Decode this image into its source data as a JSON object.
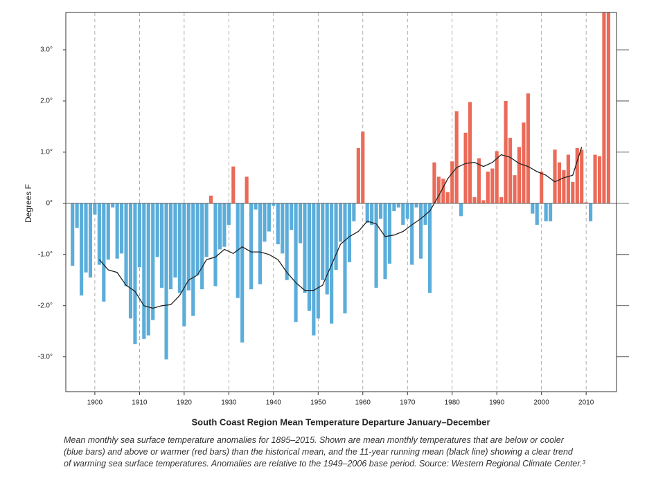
{
  "chart_data": {
    "type": "bar",
    "x_label": "South Coast Region Mean Temperature Departure January–December",
    "y_label": "Degrees F",
    "x": [
      1895,
      1896,
      1897,
      1898,
      1899,
      1900,
      1901,
      1902,
      1903,
      1904,
      1905,
      1906,
      1907,
      1908,
      1909,
      1910,
      1911,
      1912,
      1913,
      1914,
      1915,
      1916,
      1917,
      1918,
      1919,
      1920,
      1921,
      1922,
      1923,
      1924,
      1925,
      1926,
      1927,
      1928,
      1929,
      1930,
      1931,
      1932,
      1933,
      1934,
      1935,
      1936,
      1937,
      1938,
      1939,
      1940,
      1941,
      1942,
      1943,
      1944,
      1945,
      1946,
      1947,
      1948,
      1949,
      1950,
      1951,
      1952,
      1953,
      1954,
      1955,
      1956,
      1957,
      1958,
      1959,
      1960,
      1961,
      1962,
      1963,
      1964,
      1965,
      1966,
      1967,
      1968,
      1969,
      1970,
      1971,
      1972,
      1973,
      1974,
      1975,
      1976,
      1977,
      1978,
      1979,
      1980,
      1981,
      1982,
      1983,
      1984,
      1985,
      1986,
      1987,
      1988,
      1989,
      1990,
      1991,
      1992,
      1993,
      1994,
      1995,
      1996,
      1997,
      1998,
      1999,
      2000,
      2001,
      2002,
      2003,
      2004,
      2005,
      2006,
      2007,
      2008,
      2009,
      2010,
      2011,
      2012,
      2013,
      2014,
      2015
    ],
    "values": [
      -1.22,
      -0.48,
      -1.8,
      -1.35,
      -1.45,
      -0.22,
      -1.2,
      -1.92,
      -1.1,
      -0.08,
      -1.08,
      -0.98,
      -1.62,
      -2.25,
      -2.75,
      -1.25,
      -2.65,
      -2.58,
      -2.28,
      -1.05,
      -1.65,
      -3.05,
      -1.68,
      -1.45,
      -1.75,
      -2.4,
      -1.7,
      -2.2,
      -1.4,
      -1.68,
      -1.05,
      0.15,
      -1.62,
      -0.9,
      -0.85,
      -0.42,
      0.72,
      -1.85,
      -2.72,
      0.52,
      -1.68,
      -0.12,
      -1.58,
      -0.75,
      -0.55,
      -0.05,
      -0.8,
      -0.98,
      -1.5,
      -0.52,
      -2.32,
      -0.78,
      -1.75,
      -2.1,
      -2.58,
      -2.25,
      -1.5,
      -1.78,
      -2.35,
      -1.3,
      -0.75,
      -2.15,
      -1.15,
      -0.35,
      1.08,
      1.4,
      -0.38,
      -0.42,
      -1.65,
      -0.3,
      -1.48,
      -1.18,
      -0.15,
      -0.08,
      -0.42,
      -0.3,
      -1.2,
      -0.08,
      -1.08,
      -0.42,
      -1.75,
      0.8,
      0.52,
      0.48,
      0.22,
      0.82,
      1.8,
      -0.25,
      1.38,
      1.98,
      0.12,
      0.88,
      0.06,
      0.62,
      0.68,
      1.02,
      0.12,
      2.0,
      1.28,
      0.55,
      1.1,
      1.58,
      2.15,
      -0.2,
      -0.42,
      0.62,
      -0.35,
      -0.35,
      1.05,
      0.8,
      0.65,
      0.95,
      0.42,
      1.08,
      1.05,
      0.02,
      -0.35,
      0.95,
      0.92,
      3.73,
      3.73
    ],
    "positive_color": "#eb6a58",
    "negative_color": "#5badda",
    "running_mean": {
      "type": "line",
      "color": "#222222",
      "x": [
        1901,
        1903,
        1905,
        1907,
        1909,
        1911,
        1913,
        1915,
        1917,
        1919,
        1921,
        1923,
        1925,
        1927,
        1929,
        1931,
        1933,
        1935,
        1937,
        1939,
        1941,
        1943,
        1945,
        1947,
        1949,
        1951,
        1953,
        1955,
        1957,
        1959,
        1961,
        1963,
        1965,
        1967,
        1969,
        1971,
        1973,
        1975,
        1977,
        1979,
        1981,
        1983,
        1985,
        1987,
        1989,
        1991,
        1993,
        1995,
        1997,
        1999,
        2001,
        2003,
        2005,
        2007,
        2009
      ],
      "values": [
        -1.1,
        -1.3,
        -1.35,
        -1.6,
        -1.72,
        -2.0,
        -2.05,
        -2.0,
        -1.98,
        -1.8,
        -1.5,
        -1.4,
        -1.1,
        -1.05,
        -0.9,
        -0.98,
        -0.85,
        -0.95,
        -0.95,
        -1.0,
        -1.1,
        -1.35,
        -1.55,
        -1.7,
        -1.7,
        -1.6,
        -1.2,
        -0.8,
        -0.65,
        -0.55,
        -0.35,
        -0.4,
        -0.65,
        -0.62,
        -0.55,
        -0.42,
        -0.3,
        -0.15,
        0.15,
        0.48,
        0.7,
        0.78,
        0.8,
        0.72,
        0.8,
        0.95,
        0.9,
        0.78,
        0.72,
        0.62,
        0.55,
        0.42,
        0.5,
        0.55,
        1.1
      ]
    },
    "xlim": [
      1893.5,
      2016.8
    ],
    "xticks": [
      1900,
      1910,
      1920,
      1930,
      1940,
      1950,
      1960,
      1970,
      1980,
      1990,
      2000,
      2010
    ],
    "ylim": [
      -3.68,
      3.73
    ],
    "yticks": [
      {
        "value": -3,
        "label": "-3.0°"
      },
      {
        "value": -2,
        "label": "-2.0°"
      },
      {
        "value": -1,
        "label": "-1.0°"
      },
      {
        "value": 0,
        "label": "0°"
      },
      {
        "value": 1,
        "label": "1.0°"
      },
      {
        "value": 2,
        "label": "2.0°"
      },
      {
        "value": 3,
        "label": "3.0°"
      }
    ],
    "x_grid": true,
    "caption": [
      "Mean monthly sea surface temperature anomalies for 1895–2015. Shown are mean monthly temperatures that are below or cooler",
      "(blue bars) and above or warmer (red bars) than the historical mean, and the 11-year running mean (black line) showing a clear trend",
      "of warming sea surface temperatures. Anomalies are relative to the 1949–2006 base period. Source: Western Regional Climate Center.³"
    ]
  }
}
